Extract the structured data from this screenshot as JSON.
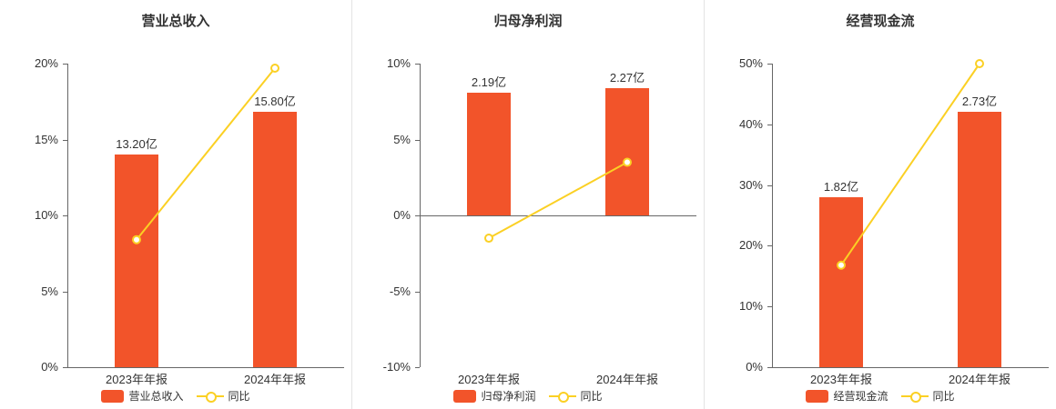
{
  "colors": {
    "bar": "#f2542a",
    "line": "#fbd024",
    "axis": "#666666",
    "zero_line": "#666666",
    "text": "#333333",
    "separator": "#e3e3e3",
    "background": "#ffffff"
  },
  "layout_hints": {
    "bar_fill_ratio": 0.84,
    "grid": "off",
    "legend_position": "bottom-center"
  },
  "chart_data": [
    {
      "type": "bar",
      "title": "营业总收入",
      "categories": [
        "2023年年报",
        "2024年年报"
      ],
      "bar_series": {
        "name": "营业总收入",
        "values": [
          13.2,
          15.8
        ],
        "labels": [
          "13.20亿",
          "15.80亿"
        ],
        "unit": "亿"
      },
      "line_series": {
        "name": "同比",
        "values": [
          8.4,
          19.7
        ],
        "unit": "%"
      },
      "ylim": [
        0,
        20
      ],
      "yticks": [
        0,
        5,
        10,
        15,
        20
      ],
      "ytick_labels": [
        "0%",
        "5%",
        "10%",
        "15%",
        "20%"
      ],
      "legend": [
        "营业总收入",
        "同比"
      ]
    },
    {
      "type": "bar",
      "title": "归母净利润",
      "categories": [
        "2023年年报",
        "2024年年报"
      ],
      "bar_series": {
        "name": "归母净利润",
        "values": [
          2.19,
          2.27
        ],
        "labels": [
          "2.19亿",
          "2.27亿"
        ],
        "unit": "亿"
      },
      "line_series": {
        "name": "同比",
        "values": [
          -1.5,
          3.5
        ],
        "unit": "%"
      },
      "ylim": [
        -10,
        10
      ],
      "yticks": [
        -10,
        -5,
        0,
        5,
        10
      ],
      "ytick_labels": [
        "-10%",
        "-5%",
        "0%",
        "5%",
        "10%"
      ],
      "legend": [
        "归母净利润",
        "同比"
      ]
    },
    {
      "type": "bar",
      "title": "经营现金流",
      "categories": [
        "2023年年报",
        "2024年年报"
      ],
      "bar_series": {
        "name": "经营现金流",
        "values": [
          1.82,
          2.73
        ],
        "labels": [
          "1.82亿",
          "2.73亿"
        ],
        "unit": "亿"
      },
      "line_series": {
        "name": "同比",
        "values": [
          16.8,
          50.0
        ],
        "unit": "%"
      },
      "ylim": [
        0,
        50
      ],
      "yticks": [
        0,
        10,
        20,
        30,
        40,
        50
      ],
      "ytick_labels": [
        "0%",
        "10%",
        "20%",
        "30%",
        "40%",
        "50%"
      ],
      "legend": [
        "经营现金流",
        "同比"
      ]
    }
  ]
}
